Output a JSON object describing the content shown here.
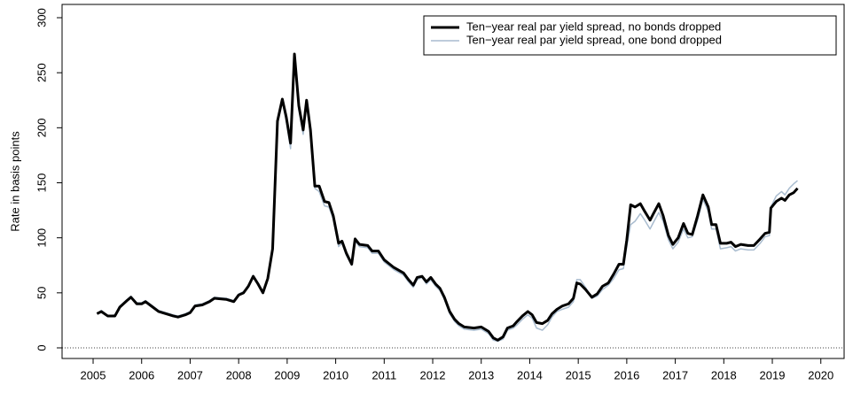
{
  "chart_data": {
    "type": "line",
    "y_label": "Rate in basis points",
    "legend": "topright",
    "x": [
      2005.08,
      2005.17,
      2005.3,
      2005.45,
      2005.55,
      2005.7,
      2005.78,
      2005.9,
      2006.0,
      2006.08,
      2006.2,
      2006.35,
      2006.5,
      2006.65,
      2006.75,
      2006.9,
      2007.0,
      2007.1,
      2007.25,
      2007.4,
      2007.5,
      2007.75,
      2007.9,
      2008.0,
      2008.1,
      2008.2,
      2008.3,
      2008.4,
      2008.5,
      2008.6,
      2008.7,
      2008.8,
      2008.9,
      2008.98,
      2009.07,
      2009.15,
      2009.24,
      2009.33,
      2009.4,
      2009.48,
      2009.57,
      2009.66,
      2009.77,
      2009.86,
      2009.95,
      2010.06,
      2010.13,
      2010.22,
      2010.33,
      2010.4,
      2010.49,
      2010.66,
      2010.75,
      2010.88,
      2011.0,
      2011.2,
      2011.4,
      2011.5,
      2011.6,
      2011.68,
      2011.78,
      2011.87,
      2011.96,
      2012.06,
      2012.15,
      2012.24,
      2012.35,
      2012.45,
      2012.54,
      2012.65,
      2012.85,
      2013.0,
      2013.15,
      2013.25,
      2013.34,
      2013.45,
      2013.54,
      2013.66,
      2013.74,
      2013.85,
      2013.96,
      2014.05,
      2014.14,
      2014.26,
      2014.37,
      2014.46,
      2014.56,
      2014.67,
      2014.8,
      2014.9,
      2014.97,
      2015.04,
      2015.15,
      2015.28,
      2015.39,
      2015.5,
      2015.62,
      2015.73,
      2015.84,
      2015.93,
      2016.0,
      2016.08,
      2016.17,
      2016.28,
      2016.37,
      2016.48,
      2016.55,
      2016.66,
      2016.75,
      2016.86,
      2016.95,
      2017.06,
      2017.17,
      2017.26,
      2017.35,
      2017.46,
      2017.57,
      2017.68,
      2017.75,
      2017.84,
      2017.93,
      2018.06,
      2018.15,
      2018.24,
      2018.35,
      2018.5,
      2018.62,
      2018.75,
      2018.85,
      2018.94,
      2018.97,
      2019.08,
      2019.19,
      2019.26,
      2019.35,
      2019.44,
      2019.52
    ],
    "series": [
      {
        "name": "Ten−year real par yield spread, one bond dropped",
        "color": "#a9bccf",
        "width": 1.5,
        "values": [
          31,
          34,
          29,
          30,
          38,
          44,
          47,
          41,
          41,
          43,
          39,
          34,
          32,
          30,
          29,
          31,
          33,
          39,
          40,
          43,
          46,
          45,
          43,
          49,
          51,
          57,
          66,
          59,
          51,
          64,
          91,
          204,
          224,
          206,
          181,
          264,
          216,
          194,
          221,
          194,
          145,
          142,
          129,
          128,
          117,
          92,
          95,
          84,
          75,
          97,
          92,
          91,
          86,
          86,
          78,
          71,
          66,
          60,
          55,
          62,
          64,
          58,
          62,
          56,
          52,
          44,
          31,
          24,
          20,
          17,
          16,
          17,
          13,
          7,
          6,
          8,
          16,
          18,
          21,
          26,
          30,
          27,
          18,
          16,
          21,
          28,
          33,
          35,
          37,
          42,
          62,
          62,
          55,
          45,
          47,
          53,
          57,
          63,
          71,
          72,
          92,
          112,
          115,
          122,
          116,
          108,
          114,
          123,
          115,
          98,
          90,
          96,
          108,
          100,
          101,
          116,
          135,
          124,
          108,
          108,
          90,
          91,
          92,
          88,
          90,
          89,
          89,
          95,
          101,
          102,
          128,
          138,
          142,
          139,
          145,
          149,
          152
        ]
      },
      {
        "name": "Ten−year real par yield spread, no bonds dropped",
        "color": "#000000",
        "width": 3,
        "values": [
          31,
          33,
          29,
          29,
          37,
          43,
          46,
          40,
          40,
          42,
          38,
          33,
          31,
          29,
          28,
          30,
          32,
          38,
          39,
          42,
          45,
          44,
          42,
          48,
          50,
          56,
          65,
          58,
          50,
          63,
          90,
          206,
          226,
          210,
          186,
          267,
          220,
          198,
          225,
          198,
          147,
          147,
          133,
          132,
          120,
          95,
          97,
          86,
          76,
          99,
          94,
          93,
          88,
          88,
          80,
          73,
          68,
          62,
          57,
          64,
          65,
          60,
          64,
          58,
          54,
          46,
          33,
          26,
          22,
          19,
          18,
          19,
          15,
          9,
          7,
          10,
          18,
          20,
          24,
          29,
          33,
          30,
          23,
          22,
          25,
          31,
          35,
          38,
          40,
          45,
          59,
          58,
          53,
          46,
          49,
          56,
          59,
          67,
          76,
          76,
          98,
          130,
          128,
          131,
          124,
          116,
          122,
          131,
          120,
          102,
          94,
          100,
          113,
          104,
          103,
          120,
          139,
          128,
          112,
          112,
          95,
          95,
          96,
          92,
          94,
          93,
          93,
          99,
          104,
          105,
          127,
          133,
          136,
          134,
          139,
          141,
          145
        ]
      }
    ],
    "xlim": [
      2004.36,
      2020.48
    ],
    "ylim": [
      -9.65,
      312.06
    ],
    "xticks": [
      2005,
      2006,
      2007,
      2008,
      2009,
      2010,
      2011,
      2012,
      2013,
      2014,
      2015,
      2016,
      2017,
      2018,
      2019,
      2020
    ],
    "yticks": [
      0,
      50,
      100,
      150,
      200,
      250,
      300
    ],
    "hline": 0
  }
}
